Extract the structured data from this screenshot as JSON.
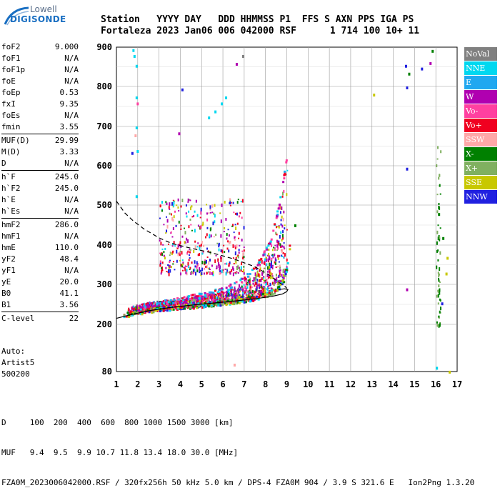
{
  "logo": {
    "top": "Lowell",
    "bottom": "DIGISONDE"
  },
  "header": {
    "line1": "Station   YYYY DAY   DDD HHMMSS P1  FFS S AXN PPS IGA PS",
    "line2": "Fortaleza 2023 Jan06 006 042000 RSF      1 714 100 10+ 11"
  },
  "params": [
    [
      {
        "label": "foF2",
        "value": "9.000"
      },
      {
        "label": "foF1",
        "value": "N/A"
      },
      {
        "label": "foF1p",
        "value": "N/A"
      },
      {
        "label": "foE",
        "value": "N/A"
      },
      {
        "label": "foEp",
        "value": "0.53"
      },
      {
        "label": "fxI",
        "value": "9.35"
      },
      {
        "label": "foEs",
        "value": "N/A"
      },
      {
        "label": "fmin",
        "value": "3.55"
      }
    ],
    [
      {
        "label": "MUF(D)",
        "value": "29.99"
      },
      {
        "label": "M(D)",
        "value": "3.33"
      },
      {
        "label": "D",
        "value": "N/A"
      }
    ],
    [
      {
        "label": "h`F",
        "value": "245.0"
      },
      {
        "label": "h`F2",
        "value": "245.0"
      },
      {
        "label": "h`E",
        "value": "N/A"
      },
      {
        "label": "h`Es",
        "value": "N/A"
      }
    ],
    [
      {
        "label": "hmF2",
        "value": "286.0"
      },
      {
        "label": "hmF1",
        "value": "N/A"
      },
      {
        "label": "hmE",
        "value": "110.0"
      },
      {
        "label": "yF2",
        "value": "48.4"
      },
      {
        "label": "yF1",
        "value": "N/A"
      },
      {
        "label": "yE",
        "value": "20.0"
      },
      {
        "label": "B0",
        "value": "41.1"
      },
      {
        "label": "B1",
        "value": "3.56"
      }
    ],
    [
      {
        "label": "C-level",
        "value": "22"
      }
    ]
  ],
  "auto": {
    "line1": "Auto:",
    "line2": "Artist5",
    "line3": "500200"
  },
  "footer": {
    "d_line": "D     100  200  400  600  800 1000 1500 3000 [km]",
    "muf_line": "MUF   9.4  9.5  9.9 10.7 11.8 13.4 18.0 30.0 [MHz]",
    "file_line": "FZA0M_2023006042000.RSF / 320fx256h 50 kHz 5.0 km / DPS-4 FZA0M 904 / 3.9 S 321.6 E   Ion2Png 1.3.20"
  },
  "chart_data": {
    "type": "scatter",
    "xlim": [
      1,
      17
    ],
    "ylim": [
      80,
      900
    ],
    "x_ticks": [
      1,
      2,
      3,
      4,
      5,
      6,
      7,
      8,
      9,
      10,
      11,
      12,
      13,
      14,
      15,
      16,
      17
    ],
    "y_ticks": [
      80,
      200,
      300,
      400,
      500,
      600,
      700,
      800,
      900
    ],
    "xlabel": "",
    "ylabel": "",
    "grid": true,
    "legend_position": "right",
    "legend": [
      {
        "name": "NoVal",
        "color": "#808080"
      },
      {
        "name": "NNE",
        "color": "#00d8f0"
      },
      {
        "name": "E",
        "color": "#20a8f0"
      },
      {
        "name": "W",
        "color": "#b000b0"
      },
      {
        "name": "Vo-",
        "color": "#ff40a0"
      },
      {
        "name": "Vo+",
        "color": "#f00020"
      },
      {
        "name": "SSW",
        "color": "#ffa8a8"
      },
      {
        "name": "X-",
        "color": "#008000"
      },
      {
        "name": "X+",
        "color": "#80b060"
      },
      {
        "name": "SSE",
        "color": "#c8c800"
      },
      {
        "name": "NNW",
        "color": "#2020e0"
      }
    ],
    "trace_o": [
      [
        1.3,
        222
      ],
      [
        1.6,
        228
      ],
      [
        2,
        232
      ],
      [
        2.5,
        237
      ],
      [
        3,
        240
      ],
      [
        3.5,
        243
      ],
      [
        4,
        245
      ],
      [
        5,
        250
      ],
      [
        6,
        256
      ],
      [
        7,
        263
      ],
      [
        7.5,
        268
      ],
      [
        8,
        275
      ],
      [
        8.5,
        288
      ],
      [
        8.8,
        310
      ],
      [
        9.0,
        350
      ],
      [
        9.1,
        400
      ]
    ],
    "trace_x": [
      [
        2.1,
        245
      ],
      [
        3,
        255
      ],
      [
        4,
        265
      ],
      [
        5,
        275
      ],
      [
        6,
        290
      ],
      [
        6.5,
        300
      ],
      [
        7,
        318
      ],
      [
        7.5,
        345
      ],
      [
        8,
        390
      ],
      [
        8.3,
        430
      ],
      [
        8.6,
        500
      ],
      [
        8.9,
        600
      ],
      [
        9.0,
        630
      ]
    ],
    "profile_solid": [
      [
        1.0,
        215
      ],
      [
        1.5,
        222
      ],
      [
        2.5,
        234
      ],
      [
        3.5,
        242
      ],
      [
        4.5,
        248
      ],
      [
        5.5,
        253
      ],
      [
        6.5,
        258
      ],
      [
        7.5,
        264
      ],
      [
        8.3,
        270
      ],
      [
        8.8,
        276
      ],
      [
        9.0,
        282
      ],
      [
        9.05,
        287
      ],
      [
        8.9,
        289
      ],
      [
        8.6,
        287
      ]
    ],
    "profile_dashed": [
      [
        1.0,
        510
      ],
      [
        1.4,
        480
      ],
      [
        1.8,
        460
      ],
      [
        2.3,
        440
      ],
      [
        3.0,
        418
      ],
      [
        3.6,
        404
      ],
      [
        4.5,
        392
      ],
      [
        5.5,
        380
      ],
      [
        6.5,
        365
      ],
      [
        7.5,
        345
      ],
      [
        8.2,
        323
      ],
      [
        8.6,
        306
      ],
      [
        8.9,
        296
      ],
      [
        9.0,
        290
      ]
    ],
    "sparse_points": [
      {
        "x": 1.75,
        "y": 895,
        "c": "#00d8f0"
      },
      {
        "x": 1.8,
        "y": 880,
        "c": "#00d8f0"
      },
      {
        "x": 1.9,
        "y": 855,
        "c": "#00d8f0"
      },
      {
        "x": 1.9,
        "y": 775,
        "c": "#00d8f0"
      },
      {
        "x": 1.95,
        "y": 760,
        "c": "#ff40a0"
      },
      {
        "x": 1.9,
        "y": 700,
        "c": "#00d8f0"
      },
      {
        "x": 1.85,
        "y": 680,
        "c": "#ffa8a8"
      },
      {
        "x": 1.95,
        "y": 640,
        "c": "#00d8f0"
      },
      {
        "x": 1.9,
        "y": 525,
        "c": "#00d8f0"
      },
      {
        "x": 1.7,
        "y": 635,
        "c": "#2020e0"
      },
      {
        "x": 4.05,
        "y": 795,
        "c": "#2020e0"
      },
      {
        "x": 3.9,
        "y": 685,
        "c": "#b000b0"
      },
      {
        "x": 5.3,
        "y": 725,
        "c": "#00d8f0"
      },
      {
        "x": 5.6,
        "y": 740,
        "c": "#00d8f0"
      },
      {
        "x": 5.9,
        "y": 760,
        "c": "#00d8f0"
      },
      {
        "x": 6.1,
        "y": 775,
        "c": "#00d8f0"
      },
      {
        "x": 6.6,
        "y": 860,
        "c": "#b000b0"
      },
      {
        "x": 6.9,
        "y": 880,
        "c": "#808080"
      },
      {
        "x": 13.05,
        "y": 782,
        "c": "#c8c800"
      },
      {
        "x": 14.55,
        "y": 855,
        "c": "#2020e0"
      },
      {
        "x": 14.6,
        "y": 800,
        "c": "#2020e0"
      },
      {
        "x": 14.7,
        "y": 835,
        "c": "#008000"
      },
      {
        "x": 15.3,
        "y": 848,
        "c": "#2020e0"
      },
      {
        "x": 15.8,
        "y": 893,
        "c": "#008000"
      },
      {
        "x": 15.7,
        "y": 862,
        "c": "#b000b0"
      },
      {
        "x": 14.6,
        "y": 595,
        "c": "#2020e0"
      },
      {
        "x": 9.35,
        "y": 452,
        "c": "#008000"
      },
      {
        "x": 14.6,
        "y": 290,
        "c": "#b000b0"
      },
      {
        "x": 16.45,
        "y": 330,
        "c": "#c8c800"
      },
      {
        "x": 16.5,
        "y": 370,
        "c": "#c8c800"
      },
      {
        "x": 16.3,
        "y": 420,
        "c": "#008000"
      },
      {
        "x": 16.1,
        "y": 480,
        "c": "#008000"
      },
      {
        "x": 16.25,
        "y": 255,
        "c": "#2020e0"
      },
      {
        "x": 16.0,
        "y": 92,
        "c": "#00d8f0"
      },
      {
        "x": 16.6,
        "y": 82,
        "c": "#c8c800"
      },
      {
        "x": 6.5,
        "y": 100,
        "c": "#ffa8a8"
      }
    ],
    "scatter_regions": [
      {
        "x0": 1.5,
        "x1": 9.0,
        "ytop": "trace_x",
        "ybot": "trace_o",
        "n": 1400
      },
      {
        "x0": 3.0,
        "x1": 7.0,
        "ymin": 330,
        "ymax": 520,
        "n": 400
      },
      {
        "x0": 16.0,
        "x1": 16.2,
        "ymin": 200,
        "ymax": 650,
        "n": 60
      }
    ]
  }
}
